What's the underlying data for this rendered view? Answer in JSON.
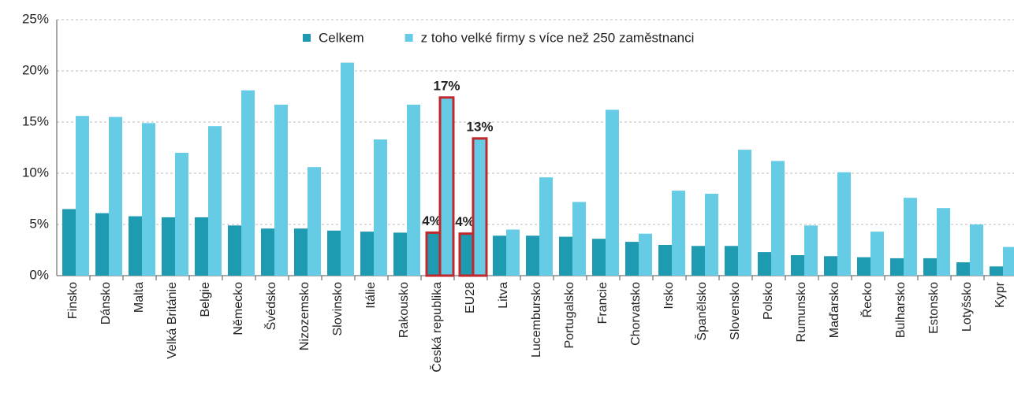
{
  "chart_data": {
    "type": "bar",
    "categories": [
      "Finsko",
      "Dánsko",
      "Malta",
      "Velká Británie",
      "Belgie",
      "Německo",
      "Švédsko",
      "Nizozemsko",
      "Slovinsko",
      "Itálie",
      "Rakousko",
      "Česká republika",
      "EU28",
      "Litva",
      "Lucembursko",
      "Portugalsko",
      "Francie",
      "Chorvatsko",
      "Irsko",
      "Španělsko",
      "Slovensko",
      "Polsko",
      "Rumunsko",
      "Maďarsko",
      "Řecko",
      "Bulharsko",
      "Estonsko",
      "Lotyšsko",
      "Kypr"
    ],
    "series": [
      {
        "name": "Celkem",
        "color": "#1e9ab1",
        "values": [
          6.5,
          6.1,
          5.8,
          5.7,
          5.7,
          4.9,
          4.6,
          4.6,
          4.4,
          4.3,
          4.2,
          4.2,
          4.1,
          3.9,
          3.9,
          3.8,
          3.6,
          3.3,
          3.0,
          2.9,
          2.9,
          2.3,
          2.0,
          1.9,
          1.8,
          1.7,
          1.7,
          1.3,
          0.9
        ],
        "value_labels": [
          null,
          null,
          null,
          null,
          null,
          null,
          null,
          null,
          null,
          null,
          null,
          "4%",
          "4%",
          null,
          null,
          null,
          null,
          null,
          null,
          null,
          null,
          null,
          null,
          null,
          null,
          null,
          null,
          null,
          null
        ]
      },
      {
        "name": "z toho velké firmy s více než 250 zaměstnanci",
        "color": "#66cce6",
        "values": [
          15.6,
          15.5,
          14.9,
          12.0,
          14.6,
          18.1,
          16.7,
          10.6,
          20.8,
          13.3,
          16.7,
          17.4,
          13.4,
          4.5,
          9.6,
          7.2,
          16.2,
          4.1,
          8.3,
          8.0,
          12.3,
          11.2,
          4.9,
          10.1,
          4.3,
          7.6,
          6.6,
          5.0,
          2.8
        ],
        "value_labels": [
          null,
          null,
          null,
          null,
          null,
          null,
          null,
          null,
          null,
          null,
          null,
          "17%",
          "13%",
          null,
          null,
          null,
          null,
          null,
          null,
          null,
          null,
          null,
          null,
          null,
          null,
          null,
          null,
          null,
          null
        ]
      }
    ],
    "highlight": [
      "Česká republika",
      "EU28"
    ],
    "highlight_color": "#c0282d",
    "ylim": [
      0,
      25
    ],
    "yticks": [
      {
        "value": 0,
        "label": "0%"
      },
      {
        "value": 5,
        "label": "5%"
      },
      {
        "value": 10,
        "label": "10%"
      },
      {
        "value": 15,
        "label": "15%"
      },
      {
        "value": 20,
        "label": "20%"
      },
      {
        "value": 25,
        "label": "25%"
      }
    ],
    "grid": true,
    "legend": "top"
  }
}
